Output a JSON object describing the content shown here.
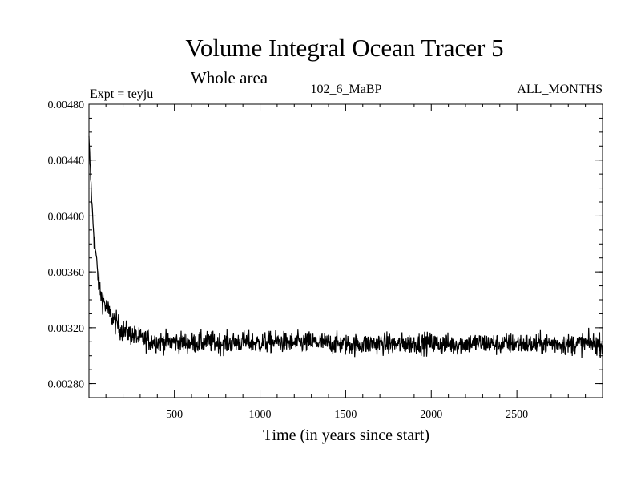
{
  "chart_data": {
    "type": "line",
    "title": "Volume Integral Ocean Tracer 5",
    "subtitle": "Whole area",
    "expt_label": "Expt = teyju",
    "run_label": "102_6_MaBP",
    "season_label": "ALL_MONTHS",
    "xlabel": "Time (in years since start)",
    "ylabel": "",
    "xlim": [
      1,
      3000
    ],
    "ylim": [
      0.0027,
      0.0048
    ],
    "x_ticks": [
      500,
      1000,
      1500,
      2000,
      2500
    ],
    "x_tick_labels": [
      "500",
      "1000",
      "1500",
      "2000",
      "2500"
    ],
    "y_ticks": [
      0.0028,
      0.0032,
      0.0036,
      0.004,
      0.0044,
      0.0048
    ],
    "y_tick_labels": [
      "0.00280",
      "0.00320",
      "0.00360",
      "0.00400",
      "0.00440",
      "0.00480"
    ],
    "grid": false,
    "series": [
      {
        "name": "Ocean Tracer 5 volume integral",
        "color": "#000000",
        "x": [
          1,
          10,
          20,
          30,
          40,
          50,
          60,
          75,
          90,
          100,
          120,
          150,
          180,
          200,
          250,
          300,
          350,
          400,
          500,
          600,
          700,
          800,
          900,
          1000,
          1100,
          1200,
          1300,
          1400,
          1500,
          1600,
          1700,
          1800,
          1900,
          2000,
          2100,
          2200,
          2300,
          2400,
          2500,
          2600,
          2700,
          2800,
          2900,
          3000
        ],
        "y": [
          0.00455,
          0.0043,
          0.00405,
          0.00385,
          0.00375,
          0.0036,
          0.0035,
          0.00342,
          0.00338,
          0.00335,
          0.0033,
          0.00325,
          0.0032,
          0.00318,
          0.00315,
          0.00312,
          0.00311,
          0.0031,
          0.0031,
          0.00309,
          0.0031,
          0.00309,
          0.0031,
          0.00309,
          0.0031,
          0.00309,
          0.0031,
          0.00309,
          0.00308,
          0.00308,
          0.00309,
          0.00308,
          0.00309,
          0.00309,
          0.00308,
          0.00309,
          0.00309,
          0.00308,
          0.00309,
          0.00308,
          0.00309,
          0.00308,
          0.00309,
          0.00308
        ]
      }
    ]
  }
}
